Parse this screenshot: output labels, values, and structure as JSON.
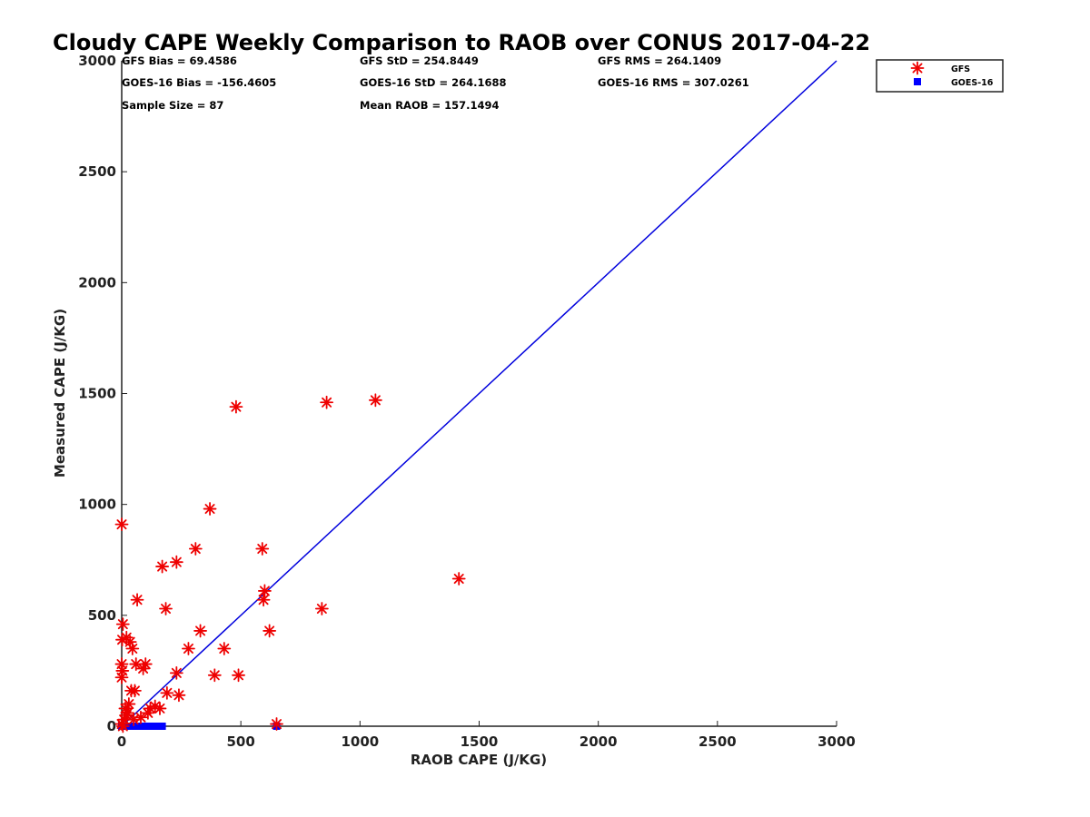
{
  "chart_data": {
    "type": "scatter",
    "title": "Cloudy CAPE Weekly Comparison to RAOB over CONUS 2017-04-22",
    "xlabel": "RAOB CAPE (J/KG)",
    "ylabel": "Measured CAPE (J/KG)",
    "xlim": [
      0,
      3000
    ],
    "ylim": [
      0,
      3000
    ],
    "xticks": [
      0,
      500,
      1000,
      1500,
      2000,
      2500,
      3000
    ],
    "yticks": [
      0,
      500,
      1000,
      1500,
      2000,
      2500,
      3000
    ],
    "grid": false,
    "legend_position": "top-right",
    "stats": [
      [
        "GFS Bias = 69.4586",
        "GFS StD = 254.8449",
        "GFS RMS = 264.1409"
      ],
      [
        "GOES-16 Bias = -156.4605",
        "GOES-16 StD = 264.1688",
        "GOES-16 RMS = 307.0261"
      ],
      [
        "Sample Size = 87",
        "Mean RAOB = 157.1494",
        ""
      ]
    ],
    "reference_line": {
      "x": [
        0,
        3000
      ],
      "y": [
        0,
        3000
      ],
      "color": "#0000dd"
    },
    "series": [
      {
        "name": "GFS",
        "marker": "asterisk",
        "color": "#ee0000",
        "points": [
          [
            0,
            910
          ],
          [
            5,
            460
          ],
          [
            2,
            390
          ],
          [
            0,
            280
          ],
          [
            3,
            250
          ],
          [
            0,
            220
          ],
          [
            20,
            400
          ],
          [
            35,
            380
          ],
          [
            45,
            350
          ],
          [
            65,
            570
          ],
          [
            60,
            280
          ],
          [
            90,
            260
          ],
          [
            100,
            280
          ],
          [
            40,
            160
          ],
          [
            55,
            160
          ],
          [
            15,
            80
          ],
          [
            30,
            100
          ],
          [
            20,
            50
          ],
          [
            10,
            30
          ],
          [
            0,
            10
          ],
          [
            5,
            0
          ],
          [
            25,
            60
          ],
          [
            50,
            30
          ],
          [
            80,
            40
          ],
          [
            120,
            80
          ],
          [
            140,
            90
          ],
          [
            160,
            80
          ],
          [
            110,
            60
          ],
          [
            190,
            150
          ],
          [
            240,
            140
          ],
          [
            170,
            720
          ],
          [
            185,
            530
          ],
          [
            230,
            740
          ],
          [
            230,
            240
          ],
          [
            280,
            350
          ],
          [
            310,
            800
          ],
          [
            330,
            430
          ],
          [
            370,
            980
          ],
          [
            390,
            230
          ],
          [
            430,
            350
          ],
          [
            480,
            1440
          ],
          [
            490,
            230
          ],
          [
            590,
            800
          ],
          [
            600,
            610
          ],
          [
            595,
            570
          ],
          [
            620,
            430
          ],
          [
            650,
            10
          ],
          [
            840,
            530
          ],
          [
            860,
            1460
          ],
          [
            1065,
            1470
          ],
          [
            1415,
            665
          ]
        ]
      },
      {
        "name": "GOES-16",
        "marker": "square",
        "color": "#0000ff",
        "points": [
          [
            0,
            0
          ],
          [
            5,
            0
          ],
          [
            10,
            0
          ],
          [
            15,
            0
          ],
          [
            20,
            0
          ],
          [
            25,
            0
          ],
          [
            30,
            0
          ],
          [
            35,
            0
          ],
          [
            40,
            0
          ],
          [
            45,
            0
          ],
          [
            50,
            0
          ],
          [
            55,
            0
          ],
          [
            60,
            0
          ],
          [
            70,
            0
          ],
          [
            80,
            0
          ],
          [
            90,
            0
          ],
          [
            100,
            0
          ],
          [
            110,
            0
          ],
          [
            120,
            0
          ],
          [
            130,
            0
          ],
          [
            140,
            0
          ],
          [
            150,
            0
          ],
          [
            160,
            0
          ],
          [
            170,
            0
          ],
          [
            650,
            0
          ]
        ]
      }
    ]
  }
}
